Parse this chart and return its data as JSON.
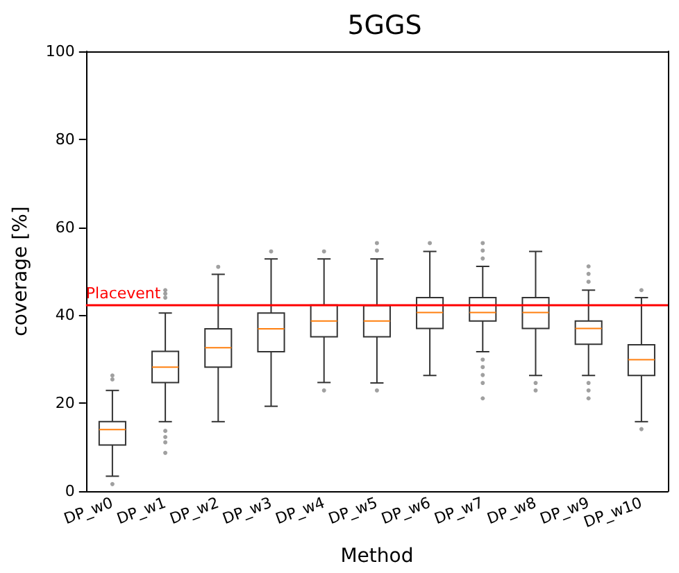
{
  "chart_data": {
    "type": "box",
    "title": "5GGS",
    "xlabel": "Method",
    "ylabel": "coverage [%]",
    "color": "#333333",
    "categories": [
      "DP_w0",
      "DP_w1",
      "DP_w2",
      "DP_w3",
      "DP_w4",
      "DP_w5",
      "DP_w6",
      "DP_w7",
      "DP_w8",
      "DP_w9",
      "DP_w10"
    ],
    "boxes": [
      {
        "low": 3.4,
        "q1": 10.5,
        "median": 14,
        "q3": 15.8,
        "high": 22.9,
        "outliers": [
          26.3,
          25.4,
          1.6
        ]
      },
      {
        "low": 15.8,
        "q1": 24.7,
        "median": 28.2,
        "q3": 31.8,
        "high": 40.5,
        "outliers": [
          45.7,
          44.9,
          44,
          13.7,
          12.3,
          11.1,
          8.7
        ]
      },
      {
        "low": 15.8,
        "q1": 28.2,
        "median": 32.6,
        "q3": 36.9,
        "high": 49.3,
        "outliers": [
          51
        ]
      },
      {
        "low": 19.3,
        "q1": 31.7,
        "median": 36.9,
        "q3": 40.5,
        "high": 52.8,
        "outliers": [
          54.5
        ]
      },
      {
        "low": 24.7,
        "q1": 35.1,
        "median": 38.7,
        "q3": 42.3,
        "high": 52.8,
        "outliers": [
          54.5,
          22.9
        ]
      },
      {
        "low": 24.6,
        "q1": 35.1,
        "median": 38.7,
        "q3": 42.2,
        "high": 52.8,
        "outliers": [
          56.4,
          54.7,
          22.9
        ]
      },
      {
        "low": 26.3,
        "q1": 37,
        "median": 40.6,
        "q3": 44,
        "high": 54.5,
        "outliers": [
          56.4
        ]
      },
      {
        "low": 31.7,
        "q1": 38.7,
        "median": 40.6,
        "q3": 44,
        "high": 51.1,
        "outliers": [
          56.4,
          54.7,
          52.9,
          29.9,
          28.2,
          26.4,
          24.6,
          21.1
        ]
      },
      {
        "low": 26.3,
        "q1": 37,
        "median": 40.6,
        "q3": 44,
        "high": 54.5,
        "outliers": [
          24.6,
          22.9
        ]
      },
      {
        "low": 26.3,
        "q1": 33.4,
        "median": 37,
        "q3": 38.7,
        "high": 45.7,
        "outliers": [
          51.1,
          49.4,
          47.6,
          24.6,
          22.9,
          21.1
        ]
      },
      {
        "low": 15.8,
        "q1": 26.3,
        "median": 29.9,
        "q3": 33.3,
        "high": 44,
        "outliers": [
          45.7,
          14.1
        ]
      }
    ],
    "ylim": [
      0,
      100
    ],
    "yticks": [
      0,
      20,
      40,
      60,
      80,
      100
    ],
    "ref_lines": [
      {
        "axis": "y",
        "value": 42.2,
        "label": "Placevent",
        "color": "#ff0000"
      }
    ]
  }
}
